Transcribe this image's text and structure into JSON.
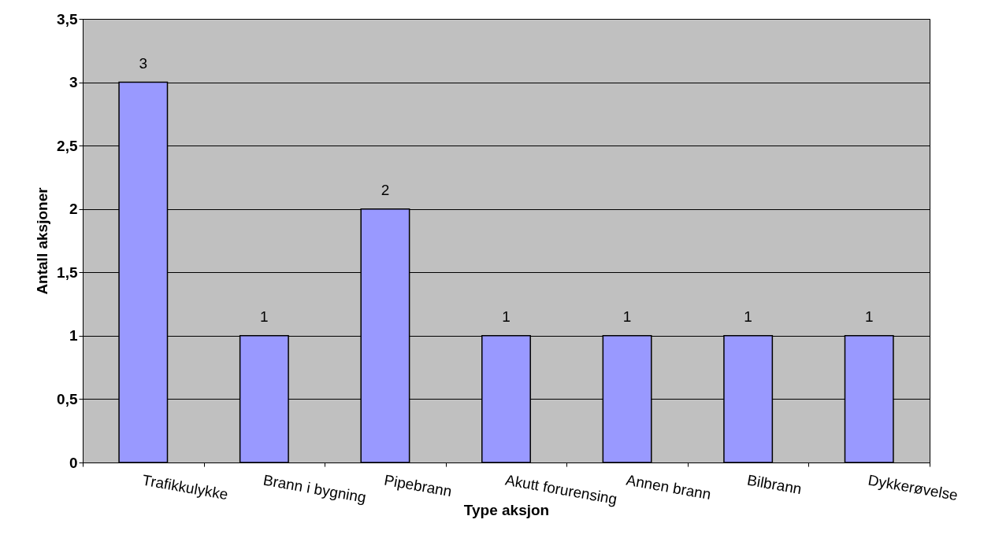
{
  "chart_data": {
    "type": "bar",
    "xlabel": "Type aksjon",
    "ylabel": "Antall aksjoner",
    "categories": [
      "Trafikkulykke",
      "Brann i bygning",
      "Pipebrann",
      "Akutt forurensing",
      "Annen brann",
      "Bilbrann",
      "Dykkerøvelse"
    ],
    "values": [
      3,
      1,
      2,
      1,
      1,
      1,
      1
    ],
    "color": "#9999ff",
    "ylim": [
      0,
      3.5
    ],
    "yticks": [
      0,
      {
        "value": 0.5,
        "label": "0,5"
      },
      1,
      {
        "value": 1.5,
        "label": "1,5"
      },
      2,
      {
        "value": 2.5,
        "label": "2,5"
      },
      3,
      {
        "value": 3.5,
        "label": "3,5"
      }
    ],
    "grid": "y",
    "data_labels": true
  }
}
